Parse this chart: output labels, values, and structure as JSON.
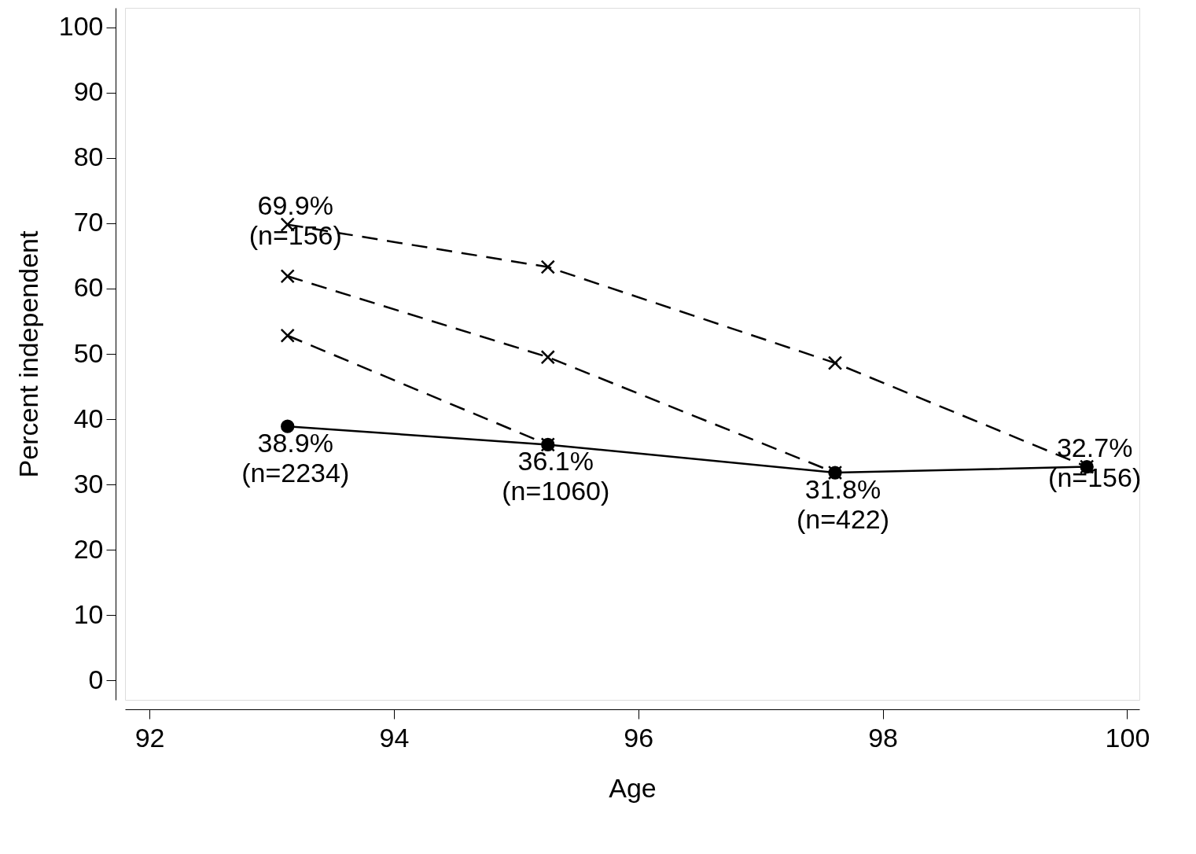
{
  "chart_data": {
    "type": "line",
    "xlabel": "Age",
    "ylabel": "Percent independent",
    "xlim": [
      91.8,
      100.1
    ],
    "xticks": [
      92,
      94,
      96,
      98,
      100
    ],
    "ylim": [
      -3,
      103
    ],
    "yticks": [
      0,
      10,
      20,
      30,
      40,
      50,
      60,
      70,
      80,
      90,
      100
    ],
    "grid": false,
    "series": [
      {
        "color": "#000000",
        "marker": "circle",
        "line_style": "solid",
        "x": [
          93.13,
          95.26,
          97.61,
          99.67
        ],
        "values": [
          38.9,
          36.1,
          31.8,
          32.7
        ]
      },
      {
        "color": "#000000",
        "marker": "cross",
        "line_style": "dashed",
        "x": [
          93.13,
          95.26,
          97.61,
          99.67
        ],
        "values": [
          69.8,
          63.3,
          48.6,
          32.7
        ]
      },
      {
        "color": "#000000",
        "marker": "cross",
        "line_style": "dashed",
        "x": [
          93.13,
          95.26,
          97.61
        ],
        "values": [
          61.9,
          49.5,
          31.8
        ]
      },
      {
        "color": "#000000",
        "marker": "cross",
        "line_style": "dashed",
        "x": [
          93.13,
          95.26
        ],
        "values": [
          52.8,
          36.1
        ]
      }
    ],
    "annotations": [
      {
        "text": "69.9%\n(n=156)",
        "x": 93.13,
        "y": 69.8
      },
      {
        "text": "38.9%\n(n=2234)",
        "x": 93.13,
        "y": 38.9
      },
      {
        "text": "36.1%\n(n=1060)",
        "x": 95.26,
        "y": 36.1
      },
      {
        "text": "31.8%\n(n=422)",
        "x": 97.61,
        "y": 31.8
      },
      {
        "text": "32.7%\n(n=156)",
        "x": 99.67,
        "y": 32.7
      }
    ]
  }
}
